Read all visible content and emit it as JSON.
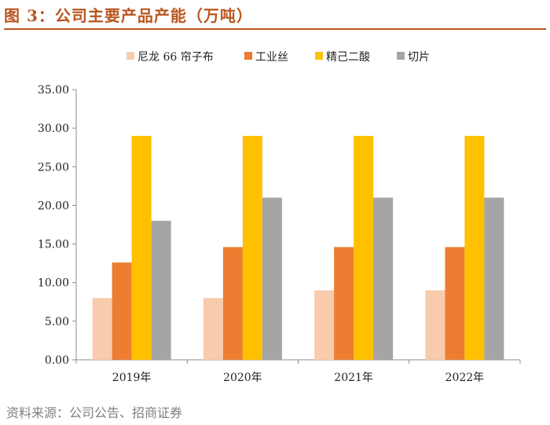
{
  "figure": {
    "title": "图 3：公司主要产品产能（万吨）",
    "source": "资料来源：公司公告、招商证券"
  },
  "chart_data": {
    "type": "bar",
    "title": "公司主要产品产能（万吨）",
    "xlabel": "",
    "ylabel": "",
    "categories": [
      "2019年",
      "2020年",
      "2021年",
      "2022年"
    ],
    "series": [
      {
        "name": "尼龙 66 帘子布",
        "color": "#f8cbad",
        "values": [
          8,
          8,
          9,
          9
        ]
      },
      {
        "name": "工业丝",
        "color": "#ed7d31",
        "values": [
          12.6,
          14.6,
          14.6,
          14.6
        ]
      },
      {
        "name": "精己二酸",
        "color": "#ffc000",
        "values": [
          29,
          29,
          29,
          29
        ]
      },
      {
        "name": "切片",
        "color": "#a5a5a5",
        "values": [
          18,
          21,
          21,
          21
        ]
      }
    ],
    "ylim": [
      0,
      35
    ],
    "yticks": [
      "0.00",
      "5.00",
      "10.00",
      "15.00",
      "20.00",
      "25.00",
      "30.00",
      "35.00"
    ],
    "grid": false,
    "legend_position": "top"
  }
}
